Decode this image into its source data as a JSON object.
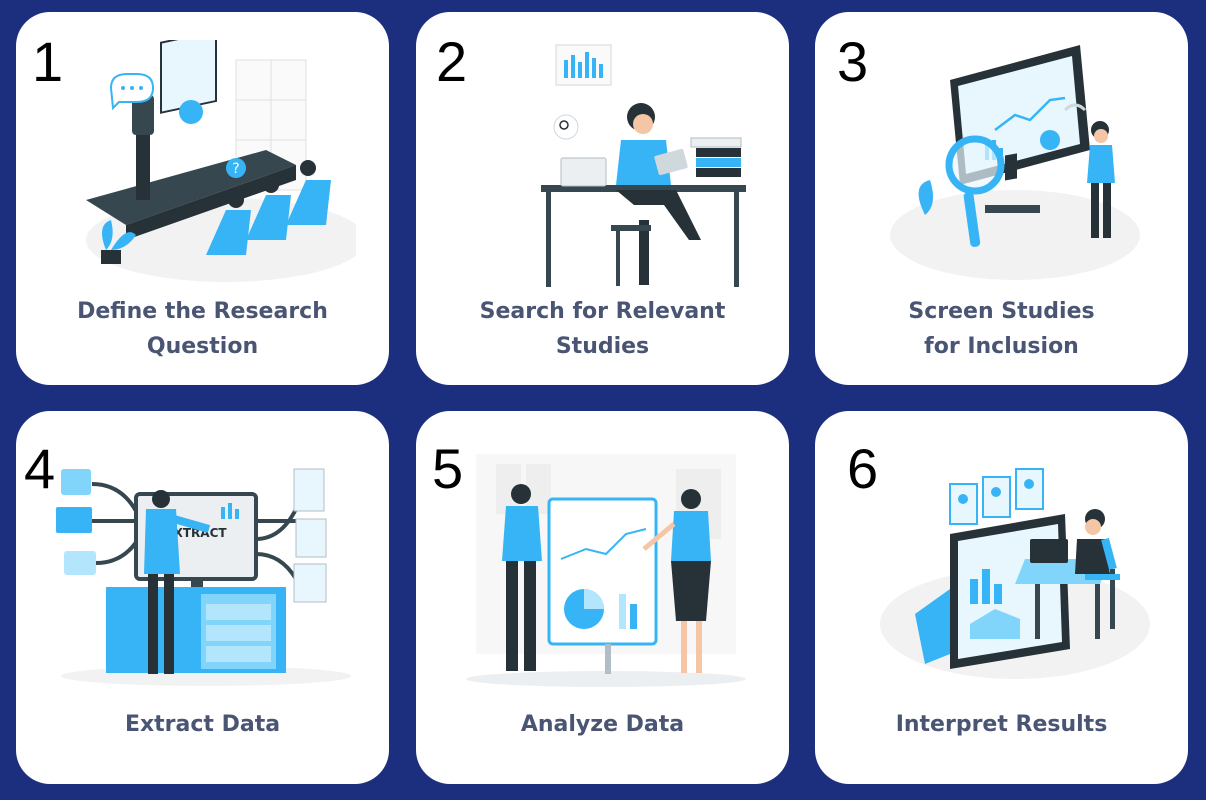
{
  "steps": [
    {
      "number": "1",
      "lines": [
        "Define the Research",
        "Question"
      ],
      "icon": "presentation-meeting-icon"
    },
    {
      "number": "2",
      "lines": [
        "Search for Relevant",
        "Studies"
      ],
      "icon": "researcher-at-desk-icon"
    },
    {
      "number": "3",
      "lines": [
        "Screen Studies",
        "for Inclusion"
      ],
      "icon": "magnifier-monitor-icon"
    },
    {
      "number": "4",
      "lines": [
        "Extract Data"
      ],
      "icon": "data-extraction-icon"
    },
    {
      "number": "5",
      "lines": [
        "Analyze Data"
      ],
      "icon": "analysis-board-icon"
    },
    {
      "number": "6",
      "lines": [
        "Interpret Results"
      ],
      "icon": "laptop-reports-icon"
    }
  ],
  "illustration_text": {
    "extract_screen": "EXTRACT"
  },
  "colors": {
    "background": "#1b2f7e",
    "card": "#ffffff",
    "accent": "#36b4f5",
    "dark": "#263238",
    "label": "#4a5573"
  }
}
